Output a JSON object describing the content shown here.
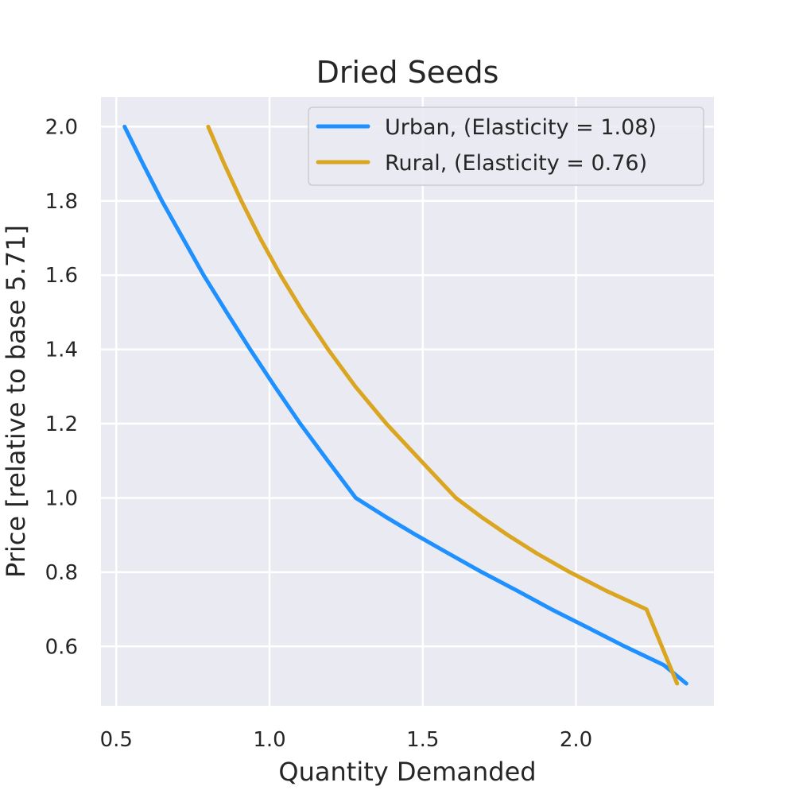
{
  "chart_data": {
    "type": "line",
    "title": "Dried Seeds",
    "xlabel": "Quantity Demanded",
    "ylabel": "Price [relative to base 5.71]",
    "xlim": [
      0.45,
      2.45
    ],
    "ylim": [
      0.44,
      2.08
    ],
    "xticks": [
      0.5,
      1.0,
      1.5,
      2.0
    ],
    "xtick_labels": [
      "0.5",
      "1.0",
      "1.5",
      "2.0"
    ],
    "yticks": [
      0.6,
      0.8,
      1.0,
      1.2,
      1.4,
      1.6,
      1.8,
      2.0
    ],
    "ytick_labels": [
      "0.6",
      "0.8",
      "1.0",
      "1.2",
      "1.4",
      "1.6",
      "1.8",
      "2.0"
    ],
    "grid": true,
    "legend_position": "top-right",
    "series": [
      {
        "name": "Urban, (Elasticity = 1.08)",
        "color": "#1e90ff",
        "x": [
          0.527,
          0.587,
          0.649,
          0.717,
          0.785,
          0.86,
          0.937,
          1.017,
          1.1,
          1.19,
          1.281,
          1.377,
          1.478,
          1.585,
          1.693,
          1.808,
          1.92,
          2.04,
          2.159,
          2.286,
          2.36
        ],
        "y": [
          2.0,
          1.9,
          1.8,
          1.7,
          1.6,
          1.5,
          1.4,
          1.3,
          1.2,
          1.1,
          1.0,
          0.95,
          0.9,
          0.85,
          0.8,
          0.75,
          0.7,
          0.65,
          0.6,
          0.55,
          0.5
        ]
      },
      {
        "name": "Rural, (Elasticity = 0.76)",
        "color": "#daa520",
        "x": [
          0.8,
          0.852,
          0.908,
          0.969,
          1.036,
          1.11,
          1.191,
          1.28,
          1.381,
          1.494,
          1.608,
          1.689,
          1.777,
          1.873,
          1.98,
          2.098,
          2.23,
          2.33
        ],
        "y": [
          2.0,
          1.9,
          1.8,
          1.7,
          1.6,
          1.5,
          1.4,
          1.3,
          1.2,
          1.1,
          1.0,
          0.95,
          0.9,
          0.85,
          0.8,
          0.75,
          0.7,
          0.5
        ]
      }
    ]
  }
}
